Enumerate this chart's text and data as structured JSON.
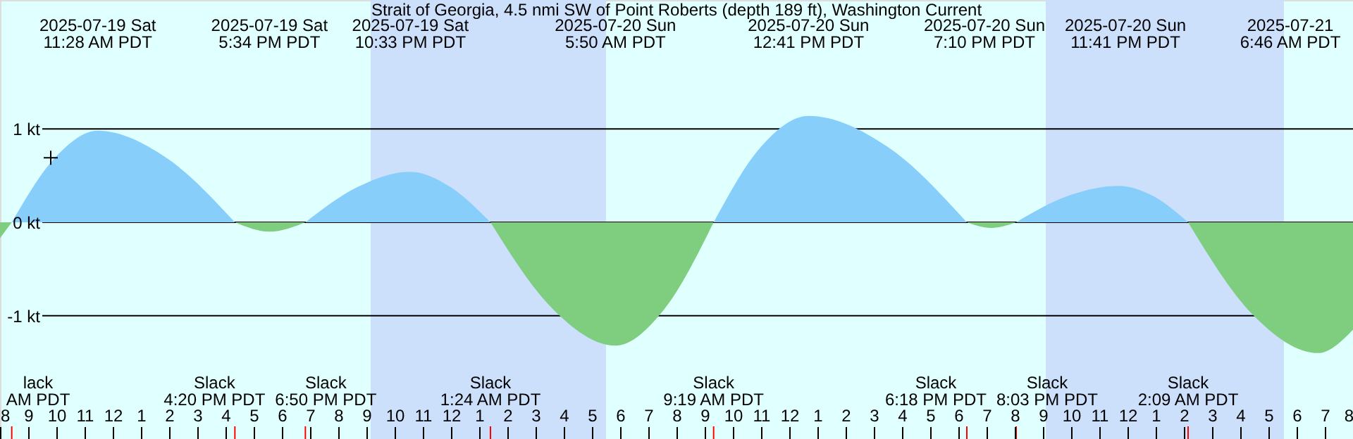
{
  "chart_data": {
    "type": "area",
    "title": "Strait of Georgia, 4.5 nmi SW of Point Roberts (depth 189 ft), Washington Current",
    "x": [
      "2025-07-19T08:00",
      "2025-07-19T08:25",
      "2025-07-19T09:57",
      "2025-07-19T11:28",
      "2025-07-19T13:54",
      "2025-07-19T16:20",
      "2025-07-19T17:34",
      "2025-07-19T18:50",
      "2025-07-19T20:42",
      "2025-07-19T22:33",
      "2025-07-19T23:58",
      "2025-07-20T01:24",
      "2025-07-20T03:37",
      "2025-07-20T05:50",
      "2025-07-20T07:34",
      "2025-07-20T09:19",
      "2025-07-20T11:00",
      "2025-07-20T12:41",
      "2025-07-20T15:29",
      "2025-07-20T18:18",
      "2025-07-20T19:10",
      "2025-07-20T20:03",
      "2025-07-20T21:52",
      "2025-07-20T23:41",
      "2025-07-21T00:55",
      "2025-07-21T02:09",
      "2025-07-21T04:27",
      "2025-07-21T06:46",
      "2025-07-21T08:00"
    ],
    "series": [
      {
        "color": "#87cefa",
        "values": [
          null,
          0,
          0.69,
          0.98,
          0.69,
          0,
          null,
          0,
          0.38,
          0.54,
          0.38,
          0,
          null,
          null,
          null,
          0,
          0.81,
          1.14,
          0.81,
          0,
          null,
          0,
          0.28,
          0.39,
          0.28,
          0,
          null,
          null,
          null
        ]
      },
      {
        "color": "#7fcd7f",
        "values": [
          -0.17,
          0,
          null,
          null,
          null,
          0,
          -0.1,
          0,
          null,
          null,
          null,
          0,
          -0.93,
          -1.32,
          -0.93,
          0,
          null,
          null,
          null,
          0,
          -0.06,
          0,
          null,
          null,
          null,
          0,
          -0.99,
          -1.4,
          -1.15
        ]
      },
      {
        "type": "scatter",
        "marker": "cross",
        "color": "#000000",
        "x": [
          "2025-07-19T09:48"
        ],
        "values": [
          0.69
        ]
      }
    ],
    "xlim": [
      "2025-07-19T08:00",
      "2025-07-21T08:00"
    ],
    "xticks": [
      {
        "value": "2025-07-19T08:00",
        "label": "8"
      },
      {
        "value": "2025-07-19T09:00",
        "label": "9"
      },
      {
        "value": "2025-07-19T10:00",
        "label": "10"
      },
      {
        "value": "2025-07-19T11:00",
        "label": "11"
      },
      {
        "value": "2025-07-19T12:00",
        "label": "12"
      },
      {
        "value": "2025-07-19T13:00",
        "label": "1"
      },
      {
        "value": "2025-07-19T14:00",
        "label": "2"
      },
      {
        "value": "2025-07-19T15:00",
        "label": "3"
      },
      {
        "value": "2025-07-19T16:00",
        "label": "4"
      },
      {
        "value": "2025-07-19T17:00",
        "label": "5"
      },
      {
        "value": "2025-07-19T18:00",
        "label": "6"
      },
      {
        "value": "2025-07-19T19:00",
        "label": "7"
      },
      {
        "value": "2025-07-19T20:00",
        "label": "8"
      },
      {
        "value": "2025-07-19T21:00",
        "label": "9"
      },
      {
        "value": "2025-07-19T22:00",
        "label": "10"
      },
      {
        "value": "2025-07-19T23:00",
        "label": "11"
      },
      {
        "value": "2025-07-20T00:00",
        "label": "12"
      },
      {
        "value": "2025-07-20T01:00",
        "label": "1"
      },
      {
        "value": "2025-07-20T02:00",
        "label": "2"
      },
      {
        "value": "2025-07-20T03:00",
        "label": "3"
      },
      {
        "value": "2025-07-20T04:00",
        "label": "4"
      },
      {
        "value": "2025-07-20T05:00",
        "label": "5"
      },
      {
        "value": "2025-07-20T06:00",
        "label": "6"
      },
      {
        "value": "2025-07-20T07:00",
        "label": "7"
      },
      {
        "value": "2025-07-20T08:00",
        "label": "8"
      },
      {
        "value": "2025-07-20T09:00",
        "label": "9"
      },
      {
        "value": "2025-07-20T10:00",
        "label": "10"
      },
      {
        "value": "2025-07-20T11:00",
        "label": "11"
      },
      {
        "value": "2025-07-20T12:00",
        "label": "12"
      },
      {
        "value": "2025-07-20T13:00",
        "label": "1"
      },
      {
        "value": "2025-07-20T14:00",
        "label": "2"
      },
      {
        "value": "2025-07-20T15:00",
        "label": "3"
      },
      {
        "value": "2025-07-20T16:00",
        "label": "4"
      },
      {
        "value": "2025-07-20T17:00",
        "label": "5"
      },
      {
        "value": "2025-07-20T18:00",
        "label": "6"
      },
      {
        "value": "2025-07-20T19:00",
        "label": "7"
      },
      {
        "value": "2025-07-20T20:00",
        "label": "8"
      },
      {
        "value": "2025-07-20T21:00",
        "label": "9"
      },
      {
        "value": "2025-07-20T22:00",
        "label": "10"
      },
      {
        "value": "2025-07-20T23:00",
        "label": "11"
      },
      {
        "value": "2025-07-21T00:00",
        "label": "12"
      },
      {
        "value": "2025-07-21T01:00",
        "label": "1"
      },
      {
        "value": "2025-07-21T02:00",
        "label": "2"
      },
      {
        "value": "2025-07-21T03:00",
        "label": "3"
      },
      {
        "value": "2025-07-21T04:00",
        "label": "4"
      },
      {
        "value": "2025-07-21T05:00",
        "label": "5"
      },
      {
        "value": "2025-07-21T06:00",
        "label": "6"
      },
      {
        "value": "2025-07-21T07:00",
        "label": "7"
      },
      {
        "value": "2025-07-21T08:00",
        "label": "8"
      }
    ],
    "ylim": [
      -2.32,
      2.38
    ],
    "yticks": [
      {
        "value": 1,
        "label": "1 kt"
      },
      {
        "value": 0,
        "label": "0 kt"
      },
      {
        "value": -1,
        "label": "-1 kt"
      }
    ],
    "grid": "y",
    "bands": [
      {
        "axis": "x",
        "from": "2025-07-19T21:09",
        "to": "2025-07-20T05:30",
        "color": "#cce0fc"
      },
      {
        "axis": "x",
        "from": "2025-07-20T21:06",
        "to": "2025-07-21T05:33",
        "color": "#cce0fc"
      }
    ],
    "annotations": [
      "2025-07-19 Sat\n11:28 AM PDT",
      "2025-07-19 Sat\n5:34 PM PDT",
      "2025-07-19 Sat\n10:33 PM PDT",
      "2025-07-20 Sun\n5:50 AM PDT",
      "2025-07-20 Sun\n12:41 PM PDT",
      "2025-07-20 Sun\n7:10 PM PDT",
      "2025-07-20 Sun\n11:41 PM PDT",
      "2025-07-21\n6:46 AM PDT",
      "lack\nAM PDT",
      "Slack\n4:20 PM PDT",
      "Slack\n6:50 PM PDT",
      "Slack\n1:24 AM PDT",
      "Slack\n9:19 AM PDT",
      "Slack\n6:18 PM PDT",
      "Slack\n8:03 PM PDT",
      "Slack\n2:09 AM PDT"
    ]
  }
}
